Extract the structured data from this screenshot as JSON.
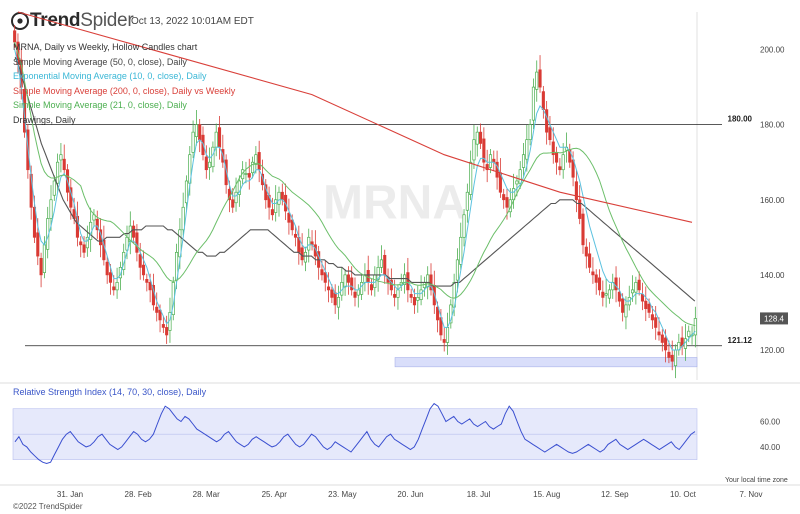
{
  "header": {
    "brand_bold": "Trend",
    "brand_light": "Spider",
    "timestamp": "Oct 13, 2022 10:01AM EDT"
  },
  "watermark": "MRNA",
  "indicators": [
    {
      "label": "MRNA, Daily vs Weekly, Hollow Candles chart",
      "color": "#333333"
    },
    {
      "label": "Simple Moving Average (50, 0, close), Daily",
      "color": "#444444"
    },
    {
      "label": "Exponential Moving Average (10, 0, close), Daily",
      "color": "#3ab7d6"
    },
    {
      "label": "Simple Moving Average (200, 0, close), Daily vs Weekly",
      "color": "#d9403a"
    },
    {
      "label": "Simple Moving Average (21, 0, close), Daily",
      "color": "#4caf50"
    },
    {
      "label": "Drawings, Daily",
      "color": "#333333"
    }
  ],
  "rsi_label": "Relative Strength Index (14, 70, 30, close), Daily",
  "footer": "©2022 TrendSpider",
  "tz_note": "Your local time zone",
  "colors": {
    "up": "#4caf50",
    "down": "#d93a34",
    "sma50": "#555555",
    "ema10": "#5cc2e0",
    "sma200": "#d9403a",
    "sma21": "#6cbf6a",
    "rsi": "#3a4fd0",
    "band": "#e6e9fb"
  },
  "chart_data": {
    "type": "candlestick",
    "ylim": [
      112,
      210
    ],
    "y_ticks": [
      "200.00",
      "180.00",
      "160.00",
      "140.00",
      "120.00"
    ],
    "x_ticks": [
      "31. Jan",
      "28. Feb",
      "28. Mar",
      "25. Apr",
      "23. May",
      "20. Jun",
      "18. Jul",
      "15. Aug",
      "12. Sep",
      "10. Oct",
      "7. Nov"
    ],
    "levels": [
      {
        "label": "180.00",
        "value": 180
      },
      {
        "label": "121.12",
        "value": 121.12
      }
    ],
    "support_zone": [
      115.5,
      118
    ],
    "last_price_label": "128.4",
    "closes": [
      202,
      196,
      190,
      178,
      168,
      158,
      150,
      145,
      140,
      148,
      155,
      160,
      165,
      170,
      172,
      168,
      162,
      158,
      155,
      150,
      148,
      146,
      150,
      154,
      156,
      152,
      148,
      144,
      140,
      138,
      136,
      138,
      142,
      146,
      150,
      153,
      150,
      146,
      142,
      140,
      138,
      136,
      132,
      130,
      128,
      126,
      124,
      130,
      138,
      146,
      152,
      158,
      165,
      172,
      178,
      180,
      176,
      172,
      168,
      170,
      174,
      178,
      174,
      170,
      164,
      160,
      158,
      162,
      165,
      168,
      167,
      166,
      170,
      172,
      168,
      164,
      160,
      158,
      156,
      160,
      162,
      160,
      157,
      154,
      152,
      150,
      146,
      144,
      146,
      150,
      148,
      145,
      142,
      140,
      138,
      136,
      134,
      132,
      134,
      138,
      140,
      138,
      136,
      134,
      136,
      138,
      140,
      138,
      136,
      140,
      142,
      144,
      140,
      138,
      136,
      134,
      136,
      138,
      140,
      136,
      134,
      132,
      134,
      136,
      138,
      140,
      136,
      132,
      128,
      124,
      122,
      126,
      132,
      138,
      144,
      150,
      156,
      162,
      170,
      176,
      178,
      175,
      170,
      168,
      172,
      170,
      166,
      162,
      160,
      158,
      160,
      163,
      165,
      168,
      172,
      176,
      180,
      190,
      194,
      190,
      184,
      178,
      176,
      172,
      170,
      168,
      172,
      174,
      170,
      166,
      160,
      155,
      148,
      145,
      142,
      140,
      138,
      136,
      134,
      135,
      136,
      138,
      136,
      133,
      130,
      132,
      134,
      136,
      138,
      136,
      133,
      131,
      130,
      128,
      126,
      124,
      122,
      120,
      118,
      117,
      120,
      122,
      121,
      123,
      125,
      124,
      128.4
    ],
    "sma50": [
      198,
      195,
      191,
      187,
      183,
      179,
      175,
      172,
      169,
      166,
      163,
      160,
      158,
      156,
      154,
      153,
      152,
      151,
      150,
      149,
      149,
      150,
      150,
      150,
      150,
      151,
      151,
      152,
      152,
      152,
      153,
      153,
      153,
      153,
      153,
      152,
      152,
      151,
      150,
      149,
      148,
      147,
      146,
      146,
      145,
      145,
      145,
      146,
      146,
      147,
      148,
      149,
      150,
      151,
      152,
      152,
      152,
      152,
      152,
      151,
      150,
      149,
      148,
      147,
      146,
      146,
      145,
      145,
      145,
      144,
      144,
      144,
      143,
      143,
      142,
      142,
      141,
      141,
      140,
      140,
      140,
      140,
      140,
      140,
      140,
      140,
      139,
      139,
      139,
      139,
      139,
      138,
      138,
      138,
      138,
      138,
      137,
      137,
      137,
      137,
      137,
      138,
      138,
      139,
      140,
      141,
      142,
      143,
      144,
      145,
      146,
      147,
      148,
      149,
      150,
      151,
      152,
      153,
      154,
      155,
      156,
      157,
      158,
      159,
      159,
      160,
      160,
      160,
      160,
      159,
      159,
      158,
      157,
      156,
      155,
      154,
      153,
      152,
      151,
      150,
      149,
      148,
      147,
      146,
      145,
      144,
      143,
      142,
      141,
      140,
      139,
      138,
      137,
      136,
      135,
      134,
      133
    ],
    "ema10": [
      200,
      196,
      190,
      182,
      174,
      166,
      159,
      153,
      149,
      148,
      150,
      153,
      157,
      162,
      166,
      167,
      165,
      162,
      159,
      155,
      151,
      149,
      149,
      151,
      153,
      153,
      151,
      148,
      145,
      142,
      139,
      139,
      140,
      143,
      146,
      149,
      149,
      148,
      146,
      144,
      142,
      139,
      136,
      133,
      131,
      129,
      127,
      128,
      132,
      138,
      144,
      150,
      157,
      164,
      170,
      175,
      176,
      175,
      172,
      171,
      172,
      174,
      174,
      172,
      168,
      164,
      161,
      161,
      162,
      164,
      165,
      165,
      166,
      168,
      168,
      166,
      163,
      161,
      159,
      159,
      160,
      160,
      159,
      157,
      155,
      153,
      150,
      148,
      147,
      148,
      148,
      147,
      145,
      143,
      141,
      139,
      137,
      135,
      135,
      136,
      137,
      137,
      137,
      136,
      136,
      137,
      138,
      138,
      138,
      138,
      139,
      140,
      140,
      139,
      138,
      137,
      136,
      137,
      138,
      138,
      137,
      135,
      135,
      135,
      136,
      137,
      137,
      135,
      132,
      129,
      126,
      126,
      128,
      131,
      136,
      141,
      146,
      152,
      158,
      164,
      169,
      171,
      171,
      170,
      170,
      170,
      169,
      167,
      165,
      163,
      162,
      162,
      163,
      164,
      166,
      169,
      173,
      178,
      183,
      185,
      184,
      182,
      180,
      178,
      176,
      174,
      174,
      174,
      173,
      171,
      168,
      165,
      161,
      157,
      153,
      150,
      147,
      144,
      141,
      139,
      138,
      138,
      137,
      136,
      134,
      133,
      133,
      134,
      135,
      135,
      135,
      134,
      133,
      131,
      130,
      128,
      126,
      124,
      122,
      120,
      120,
      120,
      121,
      122,
      123,
      124,
      125
    ],
    "sma200_points": [
      [
        1,
        210
      ],
      [
        90,
        188
      ],
      [
        130,
        172
      ],
      [
        165,
        162
      ],
      [
        205,
        154
      ]
    ],
    "rsi_ylim": [
      25,
      80
    ],
    "rsi_ticks": [
      "60.00",
      "40.00"
    ],
    "rsi_band": [
      30,
      70
    ],
    "rsi": [
      44,
      48,
      42,
      40,
      36,
      33,
      30,
      28,
      27,
      28,
      34,
      40,
      46,
      50,
      52,
      48,
      44,
      42,
      40,
      41,
      44,
      48,
      50,
      46,
      42,
      40,
      38,
      40,
      44,
      48,
      52,
      50,
      46,
      44,
      46,
      50,
      58,
      66,
      72,
      70,
      66,
      62,
      60,
      64,
      62,
      58,
      54,
      52,
      50,
      48,
      46,
      44,
      46,
      50,
      52,
      48,
      44,
      42,
      40,
      42,
      46,
      48,
      46,
      44,
      42,
      40,
      41,
      44,
      48,
      50,
      46,
      42,
      40,
      42,
      46,
      50,
      48,
      44,
      40,
      38,
      40,
      44,
      42,
      40,
      38,
      36,
      40,
      44,
      48,
      52,
      46,
      42,
      40,
      44,
      48,
      50,
      46,
      44,
      42,
      40,
      38,
      40,
      46,
      54,
      62,
      70,
      74,
      72,
      66,
      60,
      62,
      64,
      60,
      58,
      60,
      62,
      58,
      56,
      58,
      60,
      56,
      54,
      56,
      58,
      66,
      72,
      68,
      60,
      52,
      46,
      44,
      42,
      40,
      38,
      36,
      38,
      40,
      42,
      40,
      38,
      36,
      35,
      36,
      38,
      40,
      42,
      40,
      38,
      36,
      38,
      42,
      44,
      46,
      42,
      40,
      38,
      40,
      42,
      44,
      46,
      44,
      42,
      40,
      38,
      40,
      42,
      44,
      40,
      38,
      42,
      46,
      50,
      52
    ]
  }
}
